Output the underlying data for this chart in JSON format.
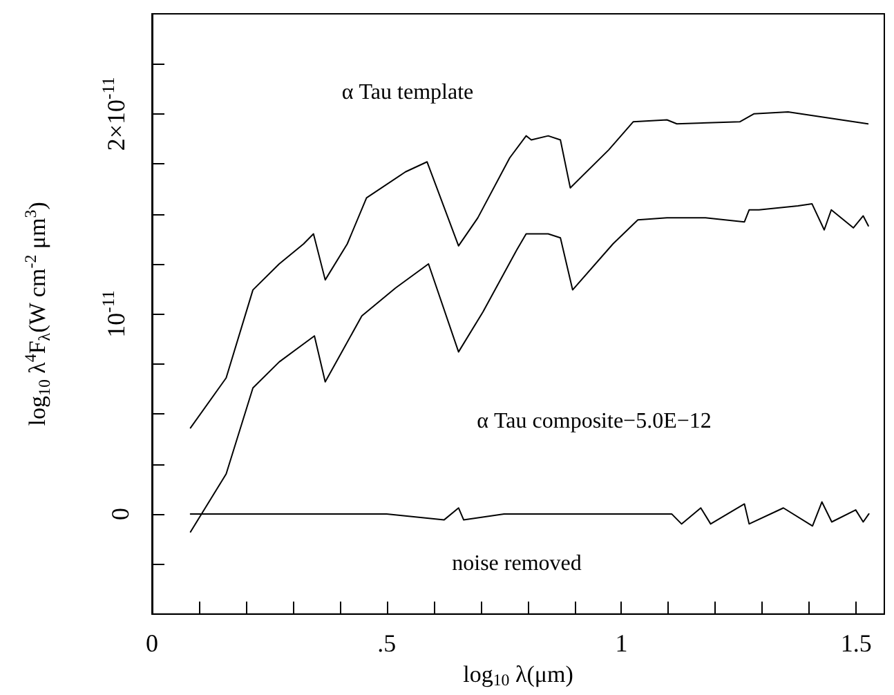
{
  "chart_data": {
    "type": "line",
    "xlabel": "log$_{10}$ λ(μm)",
    "ylabel": "log$_{10}$ λ$^{4}$F$_{λ}$(W cm$^{-2}$ μm$^{3}$)",
    "xlim": [
      0,
      1.56
    ],
    "ylim": [
      -5e-12,
      2.5e-11
    ],
    "xticks": [
      0,
      {
        "value": 0.1,
        "label": null
      },
      {
        "value": 0.2,
        "label": null
      },
      {
        "value": 0.3,
        "label": null
      },
      {
        "value": 0.4,
        "label": null
      },
      {
        "value": 0.5,
        "label": ".5"
      },
      {
        "value": 0.6,
        "label": null
      },
      {
        "value": 0.7,
        "label": null
      },
      {
        "value": 0.8,
        "label": null
      },
      {
        "value": 0.9,
        "label": null
      },
      1,
      {
        "value": 1.1,
        "label": null
      },
      {
        "value": 1.2,
        "label": null
      },
      {
        "value": 1.3,
        "label": null
      },
      {
        "value": 1.4,
        "label": null
      },
      1.5
    ],
    "yticks": [
      {
        "value": -2.5e-12,
        "label": null
      },
      0,
      {
        "value": 2.5e-12,
        "label": null
      },
      {
        "value": 5e-12,
        "label": null
      },
      {
        "value": 7.5e-12,
        "label": null
      },
      {
        "value": 1e-11,
        "label": "10$^{-11}$"
      },
      {
        "value": 1.25e-11,
        "label": null
      },
      {
        "value": 1.5e-11,
        "label": null
      },
      {
        "value": 1.75e-11,
        "label": null
      },
      {
        "value": 2e-11,
        "label": "2×10$^{-11}$"
      },
      {
        "value": 2.25e-11,
        "label": null
      }
    ],
    "grid": false,
    "marker": "none",
    "line_style": "solid",
    "series": [
      {
        "name": "α Tau template",
        "color": "#000000",
        "x": [
          0.082,
          0.158,
          0.215,
          0.271,
          0.323,
          0.344,
          0.369,
          0.416,
          0.457,
          0.54,
          0.586,
          0.653,
          0.694,
          0.762,
          0.797,
          0.808,
          0.844,
          0.87,
          0.891,
          0.973,
          1.025,
          1.097,
          1.118,
          1.252,
          1.282,
          1.355,
          1.525
        ],
        "values": [
          4.3e-12,
          6.8e-12,
          1.12e-11,
          1.25e-11,
          1.35e-11,
          1.4e-11,
          1.17e-11,
          1.35e-11,
          1.58e-11,
          1.71e-11,
          1.76e-11,
          1.34e-11,
          1.48e-11,
          1.78e-11,
          1.89e-11,
          1.87e-11,
          1.89e-11,
          1.87e-11,
          1.63e-11,
          1.82e-11,
          1.96e-11,
          1.97e-11,
          1.95e-11,
          1.96e-11,
          2e-11,
          2.01e-11,
          1.95e-11
        ]
      },
      {
        "name": "α Tau composite−5.0E−12",
        "color": "#000000",
        "x": [
          0.082,
          0.158,
          0.215,
          0.271,
          0.346,
          0.369,
          0.447,
          0.519,
          0.589,
          0.653,
          0.705,
          0.777,
          0.797,
          0.844,
          0.87,
          0.896,
          0.982,
          1.035,
          1.097,
          1.179,
          1.262,
          1.272,
          1.293,
          1.376,
          1.406,
          1.432,
          1.447,
          1.494,
          1.515,
          1.526
        ],
        "values": [
          -9e-13,
          2e-12,
          6.3e-12,
          7.6e-12,
          8.9e-12,
          6.6e-12,
          9.9e-12,
          1.13e-11,
          1.25e-11,
          8.1e-12,
          1.01e-11,
          1.32e-11,
          1.4e-11,
          1.4e-11,
          1.38e-11,
          1.12e-11,
          1.35e-11,
          1.47e-11,
          1.48e-11,
          1.48e-11,
          1.46e-11,
          1.52e-11,
          1.52e-11,
          1.54e-11,
          1.55e-11,
          1.42e-11,
          1.52e-11,
          1.43e-11,
          1.49e-11,
          1.44e-11
        ]
      },
      {
        "name": "noise removed",
        "color": "#000000",
        "x": [
          0.082,
          0.3,
          0.5,
          0.622,
          0.653,
          0.664,
          0.75,
          0.9,
          1.107,
          1.128,
          1.169,
          1.19,
          1.262,
          1.272,
          1.345,
          1.407,
          1.427,
          1.448,
          1.499,
          1.515,
          1.527
        ],
        "values": [
          0,
          0,
          0,
          -3e-13,
          3e-13,
          -3e-13,
          0,
          0,
          0,
          -5e-13,
          3e-13,
          -5e-13,
          5e-13,
          -5e-13,
          3e-13,
          -6e-13,
          6e-13,
          -4e-13,
          2e-13,
          -4e-13,
          0
        ]
      }
    ]
  }
}
